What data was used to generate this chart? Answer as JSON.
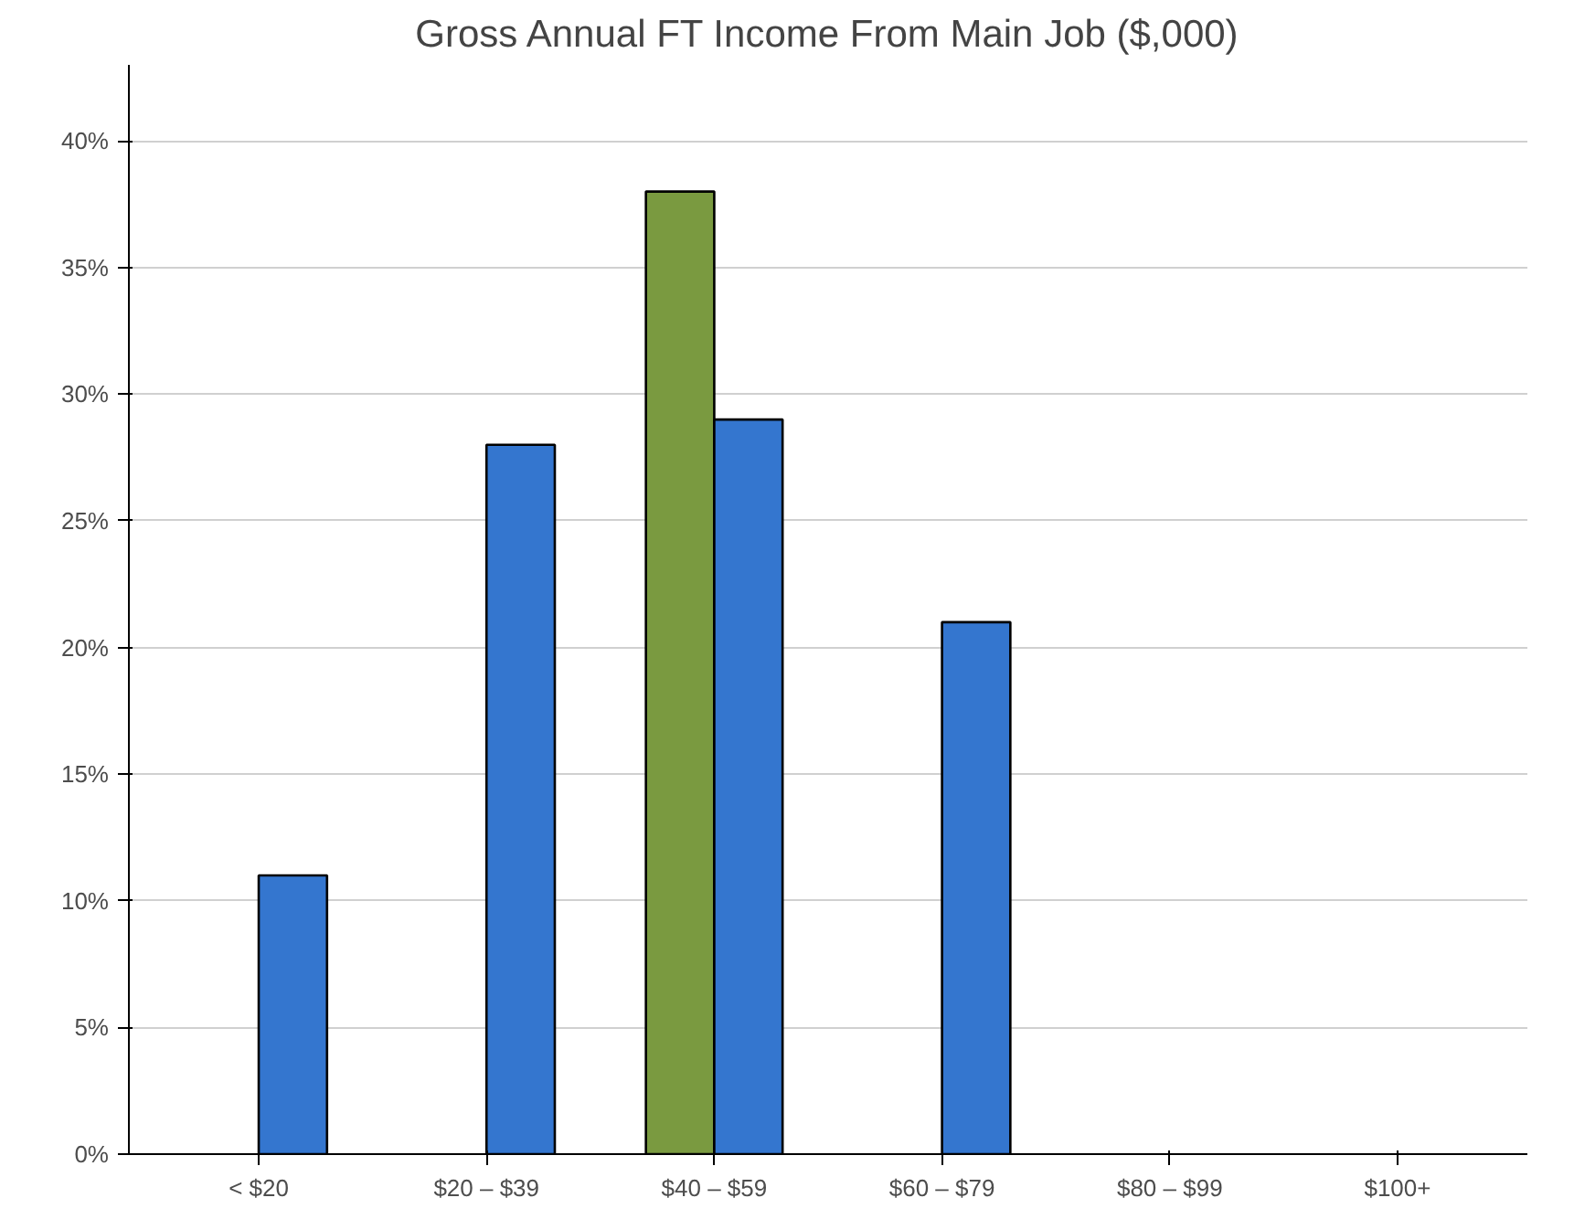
{
  "chart_data": {
    "type": "bar",
    "title": "Gross Annual FT Income From Main Job ($,000)",
    "categories": [
      "< $20",
      "$20 – $39",
      "$40 – $59",
      "$60 – $79",
      "$80 – $99",
      "$100+"
    ],
    "series": [
      {
        "color": "#7a9a40",
        "values": [
          null,
          null,
          38,
          null,
          null,
          null
        ]
      },
      {
        "color": "#3476cf",
        "values": [
          11,
          28,
          29,
          21,
          null,
          null
        ]
      }
    ],
    "ylim": [
      0,
      43
    ],
    "yticks": [
      {
        "value": 0,
        "label": "0%"
      },
      {
        "value": 5,
        "label": "5%"
      },
      {
        "value": 10,
        "label": "10%"
      },
      {
        "value": 15,
        "label": "15%"
      },
      {
        "value": 20,
        "label": "20%"
      },
      {
        "value": 25,
        "label": "25%"
      },
      {
        "value": 30,
        "label": "30%"
      },
      {
        "value": 35,
        "label": "35%"
      },
      {
        "value": 40,
        "label": "40%"
      }
    ],
    "grid": "y"
  }
}
